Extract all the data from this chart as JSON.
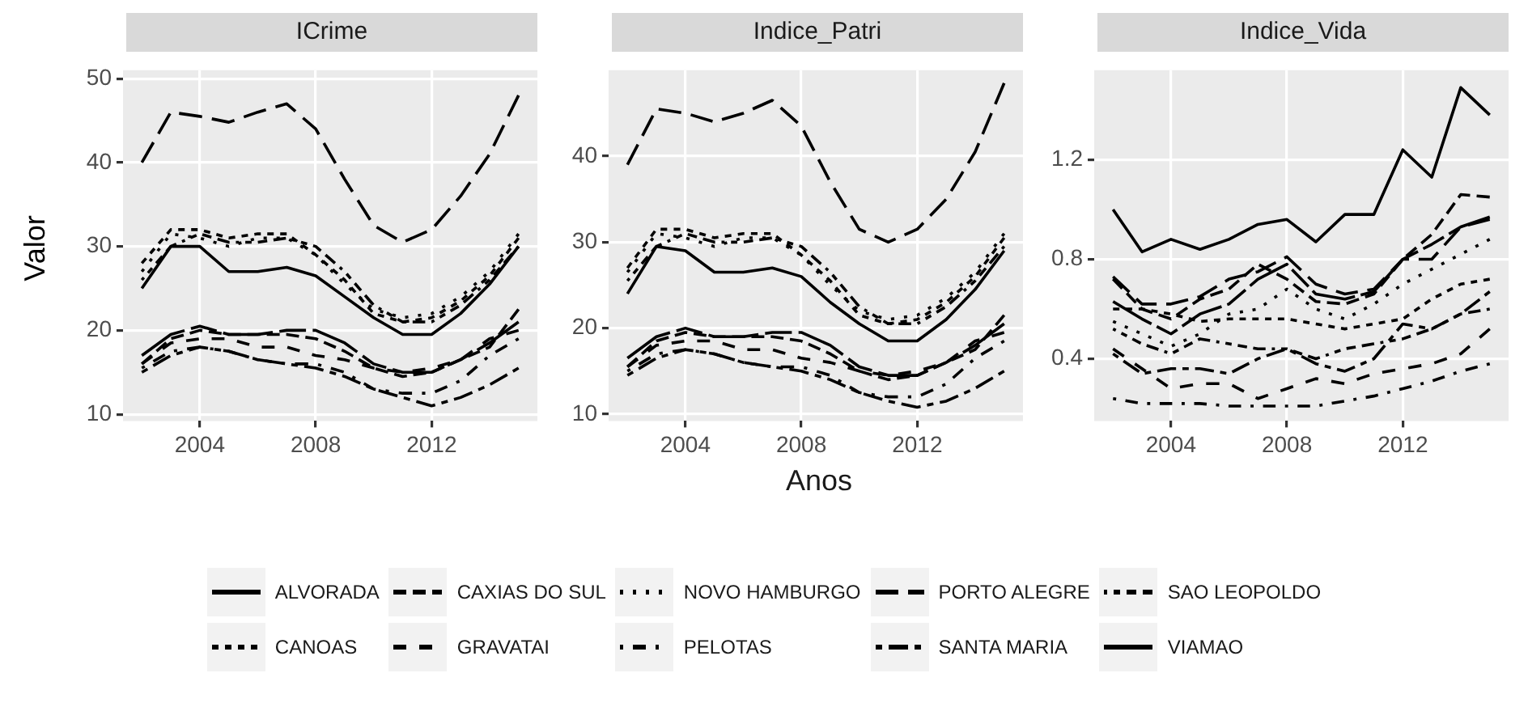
{
  "chart_data": [
    {
      "type": "line",
      "title": "ICrime",
      "ylabel": "Valor",
      "x": [
        2002,
        2003,
        2004,
        2005,
        2006,
        2007,
        2008,
        2009,
        2010,
        2011,
        2012,
        2013,
        2014,
        2015
      ],
      "xlim": [
        2001.35,
        2015.65
      ],
      "xticks": [
        2004,
        2008,
        2012
      ],
      "ylim": [
        9.2,
        51
      ],
      "yticks": [
        10,
        20,
        30,
        40,
        50
      ],
      "grid": true,
      "legend": "bottom",
      "marker": "none",
      "series": [
        {
          "name": "ALVORADA",
          "color": "#000000",
          "line_style": "solid",
          "values": [
            25,
            30,
            30,
            27,
            27,
            27.5,
            26.5,
            24,
            21.5,
            19.5,
            19.5,
            22,
            25.5,
            30
          ]
        },
        {
          "name": "CANOAS",
          "color": "#000000",
          "line_style": "dashed-short",
          "values": [
            28,
            32,
            32,
            31,
            31.5,
            31.5,
            29,
            26,
            22,
            21,
            21.5,
            23.5,
            26.5,
            31
          ]
        },
        {
          "name": "CAXIAS DO SUL",
          "color": "#000000",
          "line_style": "dashed",
          "values": [
            16,
            19,
            20,
            19.5,
            19.5,
            19.5,
            19,
            17.5,
            15.5,
            14.5,
            15,
            16.5,
            18,
            22.5
          ]
        },
        {
          "name": "GRAVATAI",
          "color": "#000000",
          "line_style": "dashed-wide",
          "values": [
            16,
            18.5,
            19,
            19,
            18,
            18,
            17,
            16.5,
            15.5,
            15,
            15.5,
            16.5,
            19,
            20
          ]
        },
        {
          "name": "NOVO HAMBURGO",
          "color": "#000000",
          "line_style": "dotted",
          "values": [
            27,
            31.5,
            31,
            30,
            31,
            31,
            29,
            25.5,
            22.5,
            21.5,
            22,
            24,
            27,
            31.5
          ]
        },
        {
          "name": "PELOTAS",
          "color": "#000000",
          "line_style": "dotdash",
          "values": [
            15.5,
            17.5,
            18,
            17.5,
            16.5,
            16,
            16,
            15,
            13,
            12.5,
            12.5,
            14,
            17,
            19
          ]
        },
        {
          "name": "PORTO ALEGRE",
          "color": "#000000",
          "line_style": "longdash",
          "values": [
            40,
            46,
            45.5,
            44.8,
            46,
            47,
            44,
            38,
            32.5,
            30.5,
            32,
            36,
            41,
            48
          ]
        },
        {
          "name": "SANTA MARIA",
          "color": "#000000",
          "line_style": "twodash",
          "values": [
            15,
            17,
            18,
            17.5,
            16.5,
            16,
            15.5,
            14.5,
            13,
            12,
            11,
            12,
            13.5,
            15.5
          ]
        },
        {
          "name": "SAO LEOPOLDO",
          "color": "#000000",
          "line_style": "dash-mixed",
          "values": [
            26,
            30,
            31.5,
            30.5,
            30.5,
            31,
            30,
            27,
            23,
            21,
            21,
            23,
            26,
            30
          ]
        },
        {
          "name": "VIAMAO",
          "color": "#000000",
          "line_style": "solid-broken",
          "values": [
            17,
            19.5,
            20.5,
            19.5,
            19.5,
            20,
            20,
            18.5,
            16,
            15,
            15,
            16.5,
            18.5,
            21
          ]
        }
      ]
    },
    {
      "type": "line",
      "title": "Indice_Patri",
      "xlabel": "Anos",
      "x": [
        2002,
        2003,
        2004,
        2005,
        2006,
        2007,
        2008,
        2009,
        2010,
        2011,
        2012,
        2013,
        2014,
        2015
      ],
      "xlim": [
        2001.35,
        2015.65
      ],
      "xticks": [
        2004,
        2008,
        2012
      ],
      "ylim": [
        9.2,
        50
      ],
      "yticks": [
        10,
        20,
        30,
        40
      ],
      "grid": true,
      "marker": "none",
      "series": [
        {
          "color": "#000000",
          "line_style": "solid",
          "values": [
            24,
            29.5,
            29,
            26.5,
            26.5,
            27,
            26,
            23,
            20.5,
            18.5,
            18.5,
            21,
            24.5,
            29
          ]
        },
        {
          "color": "#000000",
          "line_style": "dashed-short",
          "values": [
            27,
            31.5,
            31.5,
            30.5,
            31,
            31,
            28.5,
            25.5,
            21.5,
            20.5,
            21,
            23,
            26,
            30.5
          ]
        },
        {
          "color": "#000000",
          "line_style": "dashed",
          "values": [
            15.5,
            18.5,
            19.5,
            19,
            19,
            19,
            18.5,
            17,
            15,
            14,
            14.5,
            16,
            17.5,
            21.5
          ]
        },
        {
          "color": "#000000",
          "line_style": "dashed-wide",
          "values": [
            15.5,
            18,
            18.5,
            18.5,
            17.5,
            17.5,
            16.5,
            16,
            15,
            14.5,
            15,
            16,
            18.5,
            19.5
          ]
        },
        {
          "color": "#000000",
          "line_style": "dotted",
          "values": [
            26.5,
            31,
            30.5,
            29.5,
            30.5,
            30.5,
            28.5,
            25,
            22,
            21,
            21.5,
            23.5,
            26.5,
            31
          ]
        },
        {
          "color": "#000000",
          "line_style": "dotdash",
          "values": [
            15,
            17,
            17.5,
            17,
            16,
            15.5,
            15.5,
            14.5,
            12.5,
            12,
            12,
            13.5,
            16.5,
            18.5
          ]
        },
        {
          "color": "#000000",
          "line_style": "longdash",
          "values": [
            39,
            45.5,
            45,
            44,
            45,
            46.5,
            43.5,
            37,
            31.5,
            30,
            31.5,
            35,
            40.5,
            48.5
          ]
        },
        {
          "color": "#000000",
          "line_style": "twodash",
          "values": [
            14.5,
            16.5,
            17.5,
            17,
            16,
            15.5,
            15,
            14,
            12.5,
            11.5,
            10.8,
            11.5,
            13,
            15
          ]
        },
        {
          "color": "#000000",
          "line_style": "dash-mixed",
          "values": [
            25.5,
            29.5,
            31,
            30,
            30,
            30.5,
            29.5,
            26.5,
            22.5,
            20.5,
            20.5,
            22.5,
            25.5,
            29.5
          ]
        },
        {
          "color": "#000000",
          "line_style": "solid-broken",
          "values": [
            16.5,
            19,
            20,
            19,
            19,
            19.5,
            19.5,
            18,
            15.5,
            14.5,
            14.5,
            16,
            18,
            20.5
          ]
        }
      ]
    },
    {
      "type": "line",
      "title": "Indice_Vida",
      "x": [
        2002,
        2003,
        2004,
        2005,
        2006,
        2007,
        2008,
        2009,
        2010,
        2011,
        2012,
        2013,
        2014,
        2015
      ],
      "xlim": [
        2001.35,
        2015.65
      ],
      "xticks": [
        2004,
        2008,
        2012
      ],
      "ylim": [
        0.15,
        1.56
      ],
      "yticks": [
        0.4,
        0.8,
        1.2
      ],
      "grid": true,
      "marker": "none",
      "series": [
        {
          "color": "#000000",
          "line_style": "solid",
          "values": [
            1.0,
            0.83,
            0.88,
            0.84,
            0.88,
            0.94,
            0.96,
            0.87,
            0.98,
            0.98,
            1.24,
            1.13,
            1.49,
            1.38
          ]
        },
        {
          "color": "#000000",
          "line_style": "dashed-short",
          "values": [
            0.6,
            0.6,
            0.58,
            0.55,
            0.56,
            0.56,
            0.56,
            0.54,
            0.52,
            0.54,
            0.56,
            0.64,
            0.7,
            0.72
          ]
        },
        {
          "color": "#000000",
          "line_style": "dashed",
          "values": [
            0.72,
            0.6,
            0.56,
            0.64,
            0.68,
            0.78,
            0.72,
            0.63,
            0.62,
            0.66,
            0.8,
            0.9,
            1.06,
            1.05
          ]
        },
        {
          "color": "#000000",
          "line_style": "dashed-wide",
          "values": [
            0.44,
            0.36,
            0.28,
            0.3,
            0.3,
            0.24,
            0.28,
            0.32,
            0.3,
            0.34,
            0.36,
            0.38,
            0.42,
            0.52
          ]
        },
        {
          "color": "#000000",
          "line_style": "dotted",
          "values": [
            0.55,
            0.5,
            0.45,
            0.5,
            0.58,
            0.6,
            0.68,
            0.6,
            0.56,
            0.62,
            0.7,
            0.76,
            0.82,
            0.88
          ]
        },
        {
          "color": "#000000",
          "line_style": "dotdash",
          "values": [
            0.24,
            0.22,
            0.22,
            0.22,
            0.21,
            0.21,
            0.21,
            0.21,
            0.23,
            0.25,
            0.28,
            0.31,
            0.35,
            0.38
          ]
        },
        {
          "color": "#000000",
          "line_style": "longdash",
          "values": [
            0.73,
            0.62,
            0.62,
            0.65,
            0.72,
            0.75,
            0.81,
            0.7,
            0.66,
            0.68,
            0.8,
            0.8,
            0.93,
            0.96
          ]
        },
        {
          "color": "#000000",
          "line_style": "twodash",
          "values": [
            0.42,
            0.34,
            0.36,
            0.36,
            0.34,
            0.4,
            0.44,
            0.38,
            0.35,
            0.4,
            0.54,
            0.52,
            0.58,
            0.67
          ]
        },
        {
          "color": "#000000",
          "line_style": "dash-mixed",
          "values": [
            0.52,
            0.46,
            0.42,
            0.48,
            0.46,
            0.44,
            0.44,
            0.4,
            0.44,
            0.46,
            0.48,
            0.52,
            0.58,
            0.6
          ]
        },
        {
          "color": "#000000",
          "line_style": "solid-broken",
          "values": [
            0.63,
            0.56,
            0.5,
            0.58,
            0.62,
            0.72,
            0.78,
            0.66,
            0.64,
            0.67,
            0.8,
            0.86,
            0.93,
            0.97
          ]
        }
      ]
    }
  ]
}
